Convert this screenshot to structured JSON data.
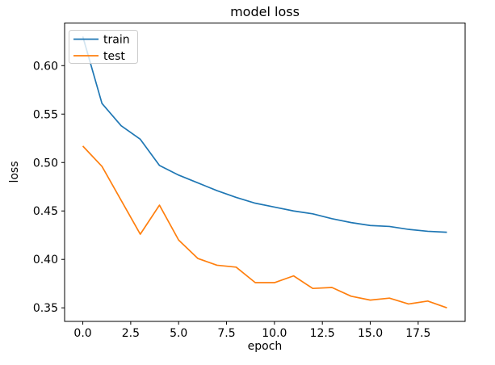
{
  "figure": {
    "background": "#ffffff",
    "spine_color": "#000000",
    "tick_color": "#000000",
    "legend_border_color": "#cccccc",
    "legend_fill": "rgba(255,255,255,0.8)"
  },
  "chart_data": {
    "type": "line",
    "title": "model loss",
    "xlabel": "epoch",
    "ylabel": "loss",
    "x": [
      0,
      1,
      2,
      3,
      4,
      5,
      6,
      7,
      8,
      9,
      10,
      11,
      12,
      13,
      14,
      15,
      16,
      17,
      18,
      19
    ],
    "series": [
      {
        "name": "train",
        "color": "#1f77b4",
        "values": [
          0.63,
          0.561,
          0.538,
          0.524,
          0.497,
          0.487,
          0.479,
          0.471,
          0.464,
          0.458,
          0.454,
          0.45,
          0.447,
          0.442,
          0.438,
          0.435,
          0.434,
          0.431,
          0.429,
          0.428
        ]
      },
      {
        "name": "test",
        "color": "#ff7f0e",
        "values": [
          0.517,
          0.496,
          0.461,
          0.426,
          0.456,
          0.42,
          0.401,
          0.394,
          0.392,
          0.376,
          0.376,
          0.383,
          0.37,
          0.371,
          0.362,
          0.358,
          0.36,
          0.354,
          0.357,
          0.35
        ]
      }
    ],
    "xlim": [
      -0.95,
      19.95
    ],
    "ylim": [
      0.336,
      0.644
    ],
    "xticks": {
      "values": [
        0,
        2.5,
        5,
        7.5,
        10,
        12.5,
        15,
        17.5
      ],
      "labels": [
        "0.0",
        "2.5",
        "5.0",
        "7.5",
        "10.0",
        "12.5",
        "15.0",
        "17.5"
      ]
    },
    "yticks": {
      "values": [
        0.35,
        0.4,
        0.45,
        0.5,
        0.55,
        0.6
      ],
      "labels": [
        "0.35",
        "0.40",
        "0.45",
        "0.50",
        "0.55",
        "0.60"
      ]
    },
    "grid": false,
    "legend": {
      "position": "upper left",
      "entries": [
        "train",
        "test"
      ]
    }
  }
}
